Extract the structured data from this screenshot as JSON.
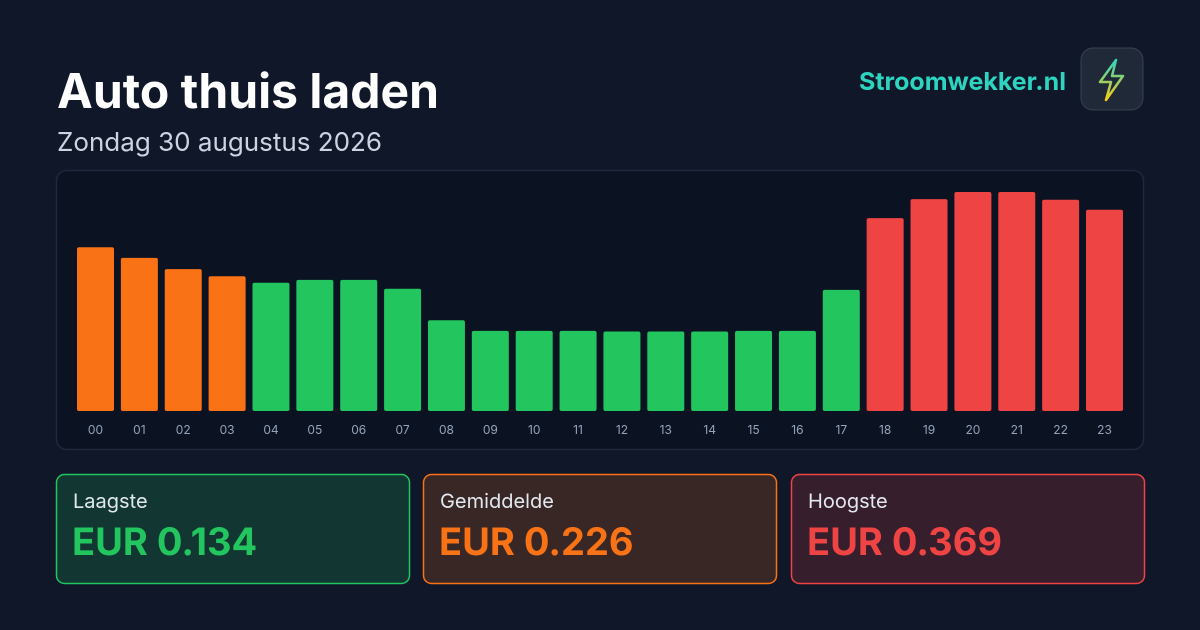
{
  "header": {
    "title": "Auto thuis laden",
    "subtitle": "Zondag 30 augustus 2026",
    "brand": "Stroomwekker.nl"
  },
  "chart_data": {
    "type": "bar",
    "categories": [
      "00",
      "01",
      "02",
      "03",
      "04",
      "05",
      "06",
      "07",
      "08",
      "09",
      "10",
      "11",
      "12",
      "13",
      "14",
      "15",
      "16",
      "17",
      "18",
      "19",
      "20",
      "21",
      "22",
      "23"
    ],
    "values": [
      0.276,
      0.258,
      0.239,
      0.227,
      0.216,
      0.221,
      0.221,
      0.206,
      0.153,
      0.135,
      0.135,
      0.135,
      0.134,
      0.134,
      0.134,
      0.135,
      0.135,
      0.204,
      0.325,
      0.357,
      0.369,
      0.369,
      0.356,
      0.339
    ],
    "colors": [
      "#f97316",
      "#f97316",
      "#f97316",
      "#f97316",
      "#22c55e",
      "#22c55e",
      "#22c55e",
      "#22c55e",
      "#22c55e",
      "#22c55e",
      "#22c55e",
      "#22c55e",
      "#22c55e",
      "#22c55e",
      "#22c55e",
      "#22c55e",
      "#22c55e",
      "#22c55e",
      "#ef4444",
      "#ef4444",
      "#ef4444",
      "#ef4444",
      "#ef4444",
      "#ef4444"
    ]
  },
  "summary": [
    {
      "label": "Laagste",
      "value": "EUR 0.134",
      "color": "#22c55e"
    },
    {
      "label": "Gemiddelde",
      "value": "EUR 0.226",
      "color": "#f97316"
    },
    {
      "label": "Hoogste",
      "value": "EUR 0.369",
      "color": "#ef4444"
    }
  ]
}
